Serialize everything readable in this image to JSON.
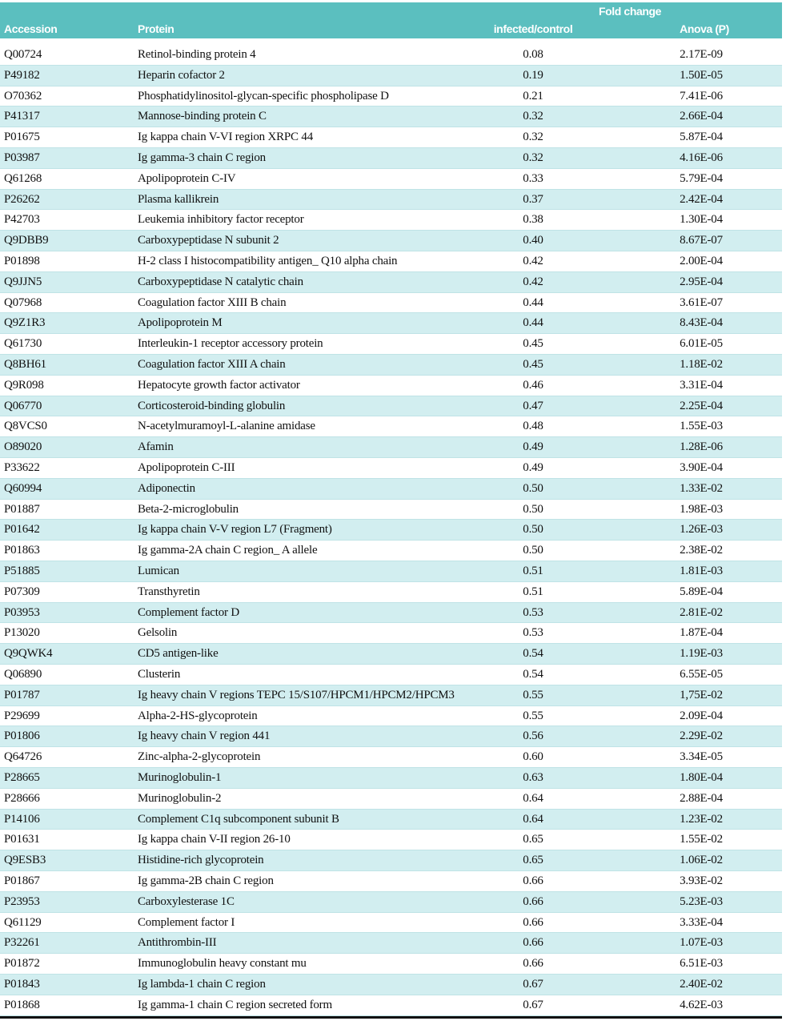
{
  "table": {
    "group_header": "Fold change",
    "columns": [
      "Accession",
      "Protein",
      "infected/control",
      "Anova (P)"
    ],
    "rows": [
      [
        "Q00724",
        "Retinol-binding protein 4",
        "0.08",
        "2.17E-09"
      ],
      [
        "P49182",
        "Heparin cofactor 2",
        "0.19",
        "1.50E-05"
      ],
      [
        "O70362",
        "Phosphatidylinositol-glycan-specific phospholipase D",
        "0.21",
        "7.41E-06"
      ],
      [
        "P41317",
        "Mannose-binding protein C",
        "0.32",
        "2.66E-04"
      ],
      [
        "P01675",
        "Ig kappa chain V-VI region XRPC 44",
        "0.32",
        "5.87E-04"
      ],
      [
        "P03987",
        "Ig gamma-3 chain C region",
        "0.32",
        "4.16E-06"
      ],
      [
        "Q61268",
        "Apolipoprotein C-IV",
        "0.33",
        "5.79E-04"
      ],
      [
        "P26262",
        "Plasma kallikrein",
        "0.37",
        "2.42E-04"
      ],
      [
        "P42703",
        "Leukemia inhibitory factor receptor",
        "0.38",
        "1.30E-04"
      ],
      [
        "Q9DBB9",
        "Carboxypeptidase N subunit 2",
        "0.40",
        "8.67E-07"
      ],
      [
        "P01898",
        "H-2 class I histocompatibility antigen_ Q10 alpha chain",
        "0.42",
        "2.00E-04"
      ],
      [
        "Q9JJN5",
        "Carboxypeptidase N catalytic chain",
        "0.42",
        "2.95E-04"
      ],
      [
        "Q07968",
        "Coagulation factor XIII B chain",
        "0.44",
        "3.61E-07"
      ],
      [
        "Q9Z1R3",
        "Apolipoprotein M",
        "0.44",
        "8.43E-04"
      ],
      [
        "Q61730",
        "Interleukin-1 receptor accessory protein",
        "0.45",
        "6.01E-05"
      ],
      [
        "Q8BH61",
        "Coagulation factor XIII A chain",
        "0.45",
        "1.18E-02"
      ],
      [
        "Q9R098",
        "Hepatocyte growth factor activator",
        "0.46",
        "3.31E-04"
      ],
      [
        "Q06770",
        "Corticosteroid-binding globulin",
        "0.47",
        "2.25E-04"
      ],
      [
        "Q8VCS0",
        "N-acetylmuramoyl-L-alanine amidase",
        "0.48",
        "1.55E-03"
      ],
      [
        "O89020",
        "Afamin",
        "0.49",
        "1.28E-06"
      ],
      [
        "P33622",
        "Apolipoprotein C-III",
        "0.49",
        "3.90E-04"
      ],
      [
        "Q60994",
        "Adiponectin",
        "0.50",
        "1.33E-02"
      ],
      [
        "P01887",
        "Beta-2-microglobulin",
        "0.50",
        "1.98E-03"
      ],
      [
        "P01642",
        "Ig kappa chain V-V region L7 (Fragment)",
        "0.50",
        "1.26E-03"
      ],
      [
        "P01863",
        "Ig gamma-2A chain C region_ A allele",
        "0.50",
        "2.38E-02"
      ],
      [
        "P51885",
        "Lumican",
        "0.51",
        "1.81E-03"
      ],
      [
        "P07309",
        "Transthyretin",
        "0.51",
        "5.89E-04"
      ],
      [
        "P03953",
        "Complement factor D",
        "0.53",
        "2.81E-02"
      ],
      [
        "P13020",
        "Gelsolin",
        "0.53",
        "1.87E-04"
      ],
      [
        "Q9QWK4",
        "CD5 antigen-like",
        "0.54",
        "1.19E-03"
      ],
      [
        "Q06890",
        "Clusterin",
        "0.54",
        "6.55E-05"
      ],
      [
        "P01787",
        "Ig heavy chain V regions TEPC 15/S107/HPCM1/HPCM2/HPCM3",
        "0.55",
        "1,75E-02"
      ],
      [
        "P29699",
        "Alpha-2-HS-glycoprotein",
        "0.55",
        "2.09E-04"
      ],
      [
        "P01806",
        "Ig heavy chain V region 441",
        "0.56",
        "2.29E-02"
      ],
      [
        "Q64726",
        "Zinc-alpha-2-glycoprotein",
        "0.60",
        "3.34E-05"
      ],
      [
        "P28665",
        "Murinoglobulin-1",
        "0.63",
        "1.80E-04"
      ],
      [
        "P28666",
        "Murinoglobulin-2",
        "0.64",
        "2.88E-04"
      ],
      [
        "P14106",
        "Complement C1q subcomponent subunit B",
        "0.64",
        "1.23E-02"
      ],
      [
        "P01631",
        "Ig kappa chain V-II region 26-10",
        "0.65",
        "1.55E-02"
      ],
      [
        "Q9ESB3",
        "Histidine-rich glycoprotein",
        "0.65",
        "1.06E-02"
      ],
      [
        "P01867",
        "Ig gamma-2B chain C region",
        "0.66",
        "3.93E-02"
      ],
      [
        "P23953",
        "Carboxylesterase 1C",
        "0.66",
        "5.23E-03"
      ],
      [
        "Q61129",
        "Complement factor I",
        "0.66",
        "3.33E-04"
      ],
      [
        "P32261",
        "Antithrombin-III",
        "0.66",
        "1.07E-03"
      ],
      [
        "P01872",
        "Immunoglobulin heavy constant mu",
        "0.66",
        "6.51E-03"
      ],
      [
        "P01843",
        "Ig lambda-1 chain C region",
        "0.67",
        "2.40E-02"
      ],
      [
        "P01868",
        "Ig gamma-1 chain C region secreted form",
        "0.67",
        "4.62E-03"
      ]
    ]
  }
}
